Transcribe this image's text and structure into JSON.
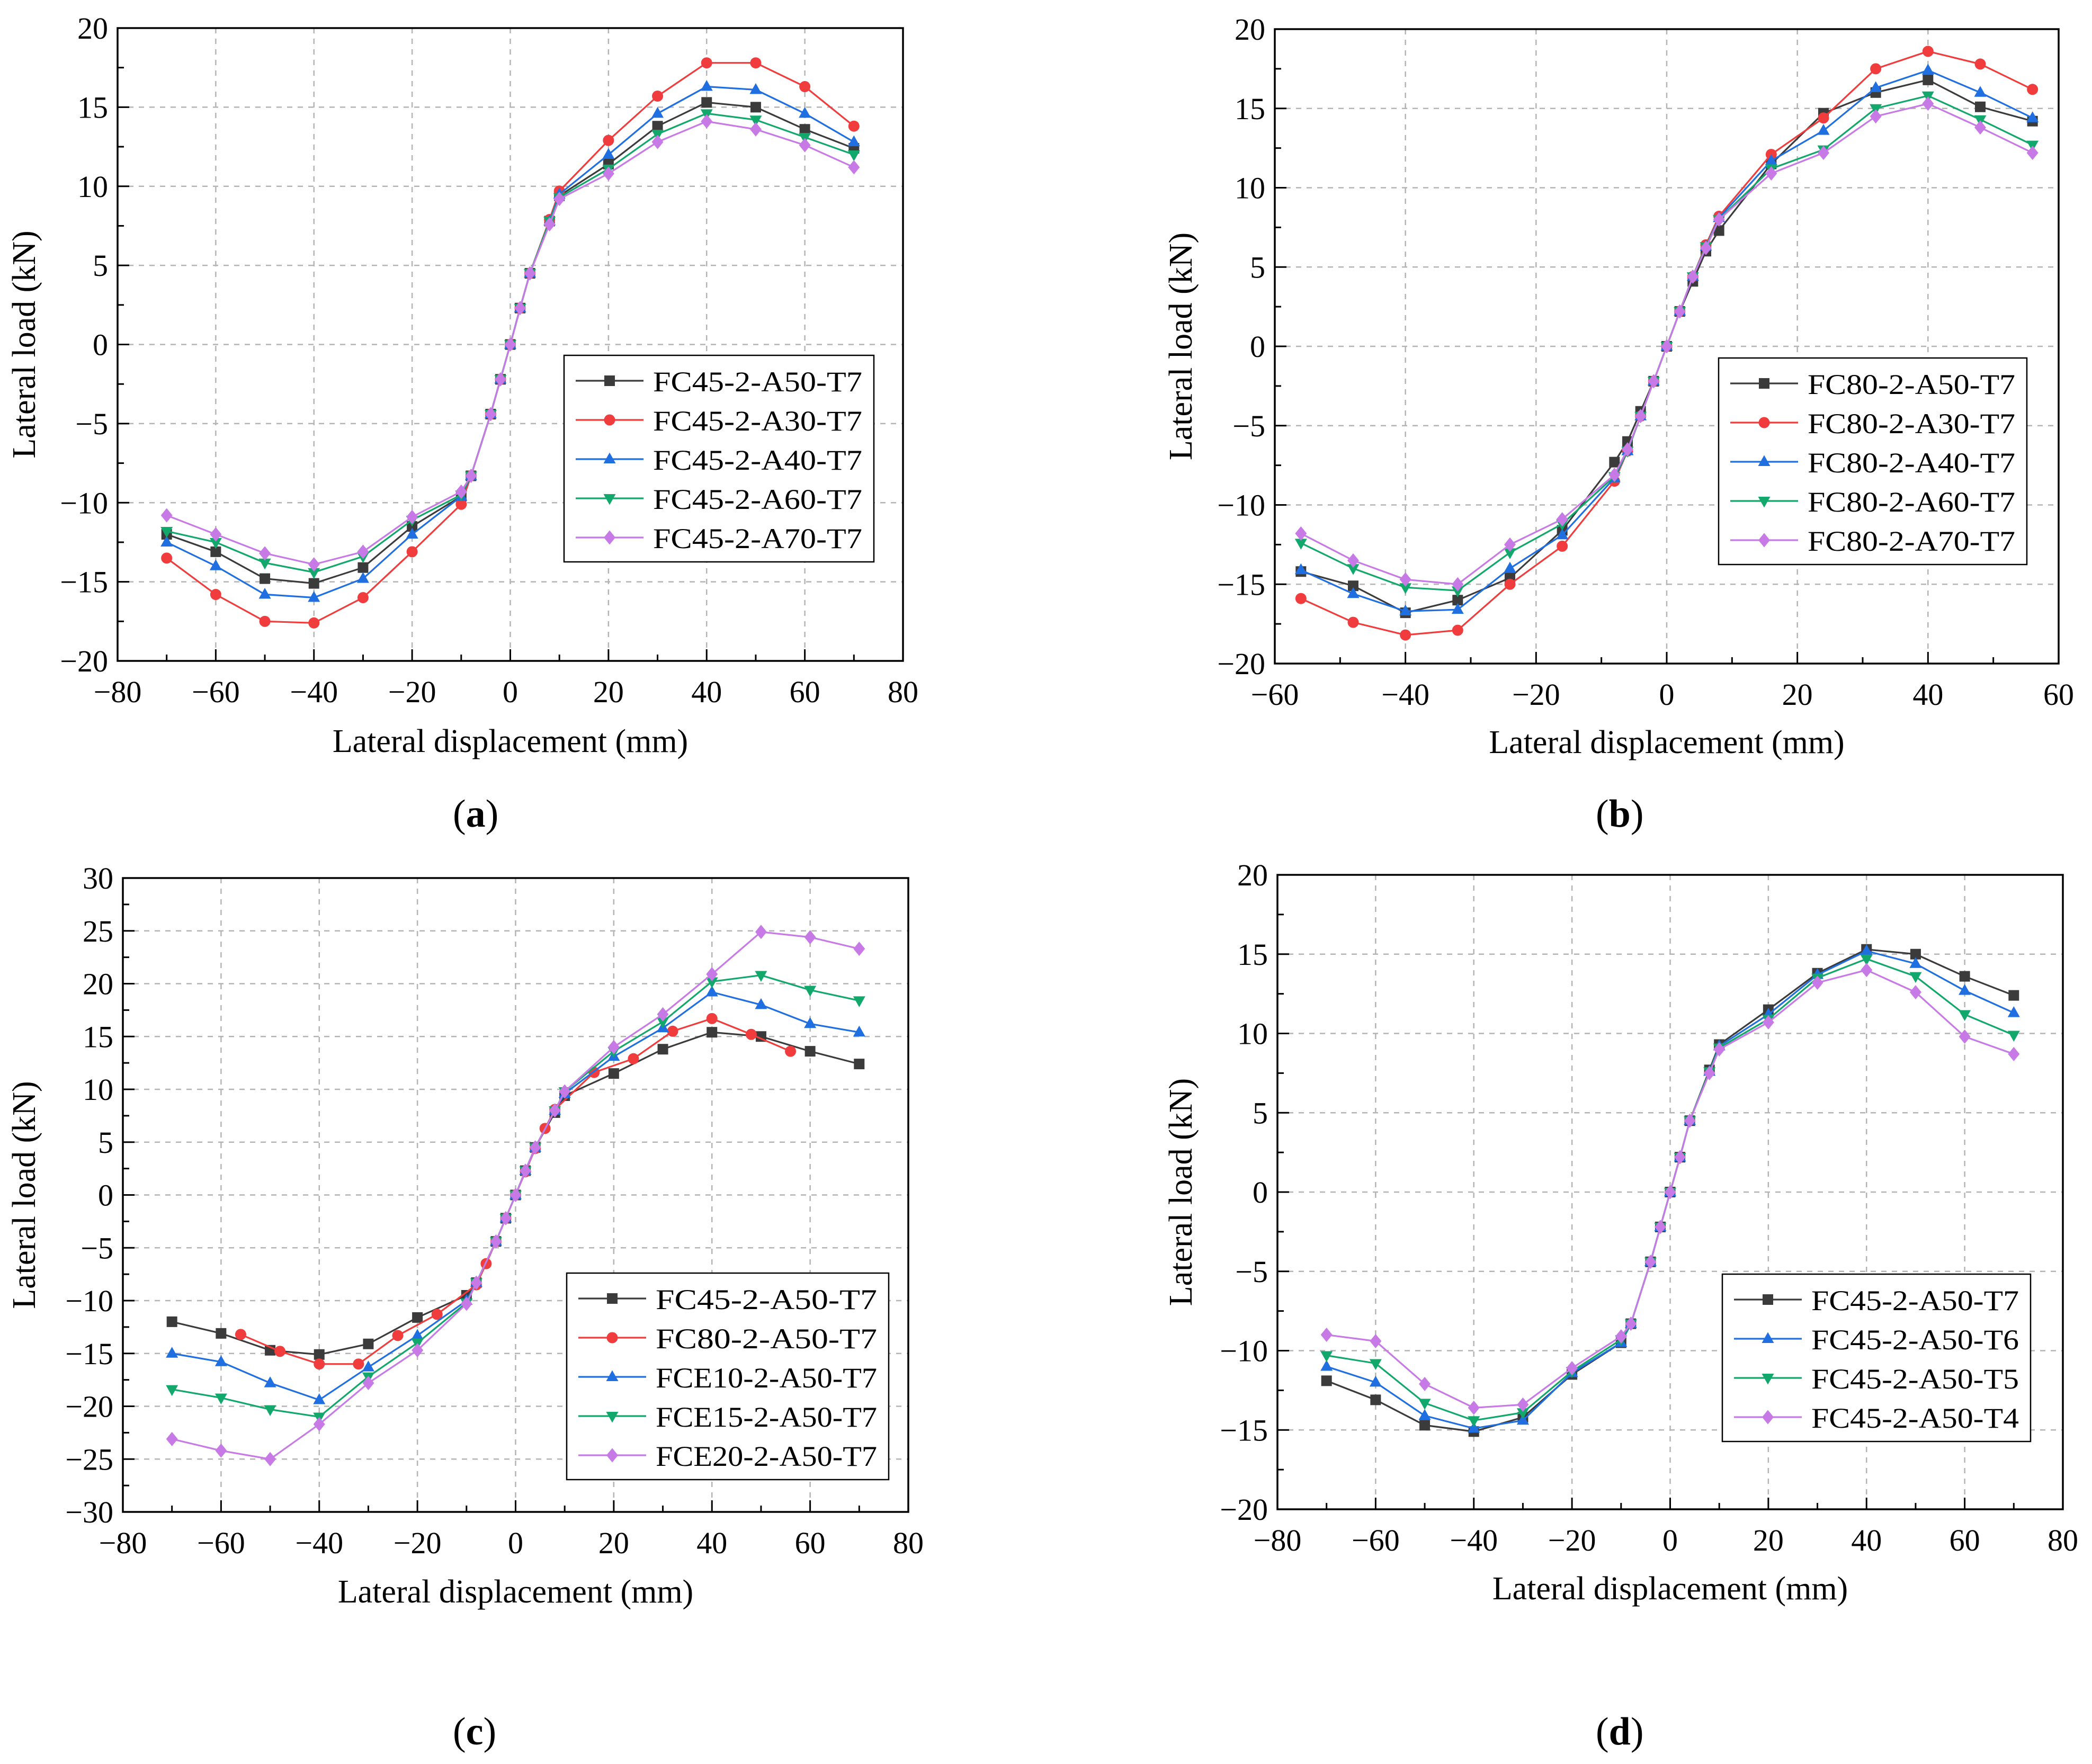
{
  "colors": {
    "black": "#3b3b3b",
    "red": "#f03c3c",
    "blue": "#1f6fe0",
    "green": "#13a86b",
    "purple": "#c77ae6",
    "grid": "#b4b4b4"
  },
  "chart_data": [
    {
      "type": "line",
      "panel": "(a)",
      "panel_letter": "a",
      "xlabel": "Lateral displacement (mm)",
      "ylabel": "Lateral load (kN)",
      "xlim": [
        -80,
        80
      ],
      "ylim": [
        -20,
        20
      ],
      "xticks": [
        -80,
        -60,
        -40,
        -20,
        0,
        20,
        40,
        60,
        80
      ],
      "yticks": [
        -20,
        -15,
        -10,
        -5,
        0,
        5,
        10,
        15,
        20
      ],
      "legend": "lower-right",
      "series": [
        {
          "name": "FC45-2-A50-T7",
          "color": "black",
          "marker": "square",
          "x": [
            -70,
            -60,
            -50,
            -40,
            -30,
            -20,
            -10,
            -8,
            -4,
            -2,
            0,
            2,
            4,
            8,
            10,
            20,
            30,
            40,
            50,
            60,
            70
          ],
          "y": [
            -12,
            -13.1,
            -14.8,
            -15.1,
            -14.1,
            -11.5,
            -9.6,
            -8.3,
            -4.4,
            -2.2,
            0,
            2.3,
            4.5,
            7.8,
            9.4,
            11.4,
            13.8,
            15.3,
            15,
            13.6,
            12.4
          ]
        },
        {
          "name": "FC45-2-A30-T7",
          "color": "red",
          "marker": "circle",
          "x": [
            -70,
            -60,
            -50,
            -40,
            -30,
            -20,
            -10,
            -8,
            -4,
            -2,
            0,
            2,
            4,
            8,
            10,
            20,
            30,
            40,
            50,
            60,
            70
          ],
          "y": [
            -13.5,
            -15.8,
            -17.5,
            -17.6,
            -16,
            -13.1,
            -10.1,
            -8.3,
            -4.4,
            -2.2,
            0,
            2.3,
            4.5,
            7.9,
            9.7,
            12.9,
            15.7,
            17.8,
            17.8,
            16.3,
            13.8
          ]
        },
        {
          "name": "FC45-2-A40-T7",
          "color": "blue",
          "marker": "triangle",
          "x": [
            -70,
            -60,
            -50,
            -40,
            -30,
            -20,
            -10,
            -8,
            -4,
            -2,
            0,
            2,
            4,
            8,
            10,
            20,
            30,
            40,
            50,
            60,
            70
          ],
          "y": [
            -12.5,
            -14,
            -15.8,
            -16,
            -14.8,
            -12,
            -9.6,
            -8.3,
            -4.4,
            -2.2,
            0,
            2.3,
            4.5,
            7.8,
            9.5,
            12,
            14.6,
            16.3,
            16.1,
            14.6,
            12.8
          ]
        },
        {
          "name": "FC45-2-A60-T7",
          "color": "green",
          "marker": "triangle-down",
          "x": [
            -70,
            -60,
            -50,
            -40,
            -30,
            -20,
            -10,
            -8,
            -4,
            -2,
            0,
            2,
            4,
            8,
            10,
            20,
            30,
            40,
            50,
            60,
            70
          ],
          "y": [
            -11.8,
            -12.5,
            -13.8,
            -14.4,
            -13.4,
            -11.1,
            -9.5,
            -8.3,
            -4.4,
            -2.2,
            0,
            2.3,
            4.5,
            7.8,
            9.3,
            11.1,
            13.3,
            14.6,
            14.2,
            13.1,
            12
          ]
        },
        {
          "name": "FC45-2-A70-T7",
          "color": "purple",
          "marker": "diamond",
          "x": [
            -70,
            -60,
            -50,
            -40,
            -30,
            -20,
            -10,
            -8,
            -4,
            -2,
            0,
            2,
            4,
            8,
            10,
            20,
            30,
            40,
            50,
            60,
            70
          ],
          "y": [
            -10.8,
            -12,
            -13.2,
            -13.9,
            -13.1,
            -10.9,
            -9.3,
            -8.3,
            -4.4,
            -2.2,
            0,
            2.3,
            4.5,
            7.6,
            9.2,
            10.8,
            12.8,
            14.1,
            13.6,
            12.6,
            11.2
          ]
        }
      ]
    },
    {
      "type": "line",
      "panel": "(b)",
      "panel_letter": "b",
      "xlabel": "Lateral displacement (mm)",
      "ylabel": "Lateral load (kN)",
      "xlim": [
        -60,
        60
      ],
      "ylim": [
        -20,
        20
      ],
      "xticks": [
        -60,
        -40,
        -20,
        0,
        20,
        40,
        60
      ],
      "yticks": [
        -20,
        -15,
        -10,
        -5,
        0,
        5,
        10,
        15,
        20
      ],
      "legend": "lower-right",
      "series": [
        {
          "name": "FC80-2-A50-T7",
          "color": "black",
          "marker": "square",
          "x": [
            -56,
            -48,
            -40,
            -32,
            -24,
            -16,
            -8,
            -6,
            -4,
            -2,
            0,
            2,
            4,
            6,
            8,
            16,
            24,
            32,
            40,
            48,
            56
          ],
          "y": [
            -14.2,
            -15.1,
            -16.8,
            -16,
            -14.6,
            -11.6,
            -7.3,
            -6,
            -4.1,
            -2.2,
            0,
            2.2,
            4.1,
            6,
            7.3,
            11.5,
            14.7,
            16,
            16.8,
            15.1,
            14.2
          ]
        },
        {
          "name": "FC80-2-A30-T7",
          "color": "red",
          "marker": "circle",
          "x": [
            -56,
            -48,
            -40,
            -32,
            -24,
            -16,
            -8,
            -6,
            -4,
            -2,
            0,
            2,
            4,
            6,
            8,
            16,
            24,
            32,
            40,
            48,
            56
          ],
          "y": [
            -15.9,
            -17.4,
            -18.2,
            -17.9,
            -15,
            -12.6,
            -8.5,
            -6.6,
            -4.4,
            -2.2,
            0,
            2.2,
            4.4,
            6.4,
            8.2,
            12.1,
            14.4,
            17.5,
            18.6,
            17.8,
            16.2
          ]
        },
        {
          "name": "FC80-2-A40-T7",
          "color": "blue",
          "marker": "triangle",
          "x": [
            -56,
            -48,
            -40,
            -32,
            -24,
            -16,
            -8,
            -6,
            -4,
            -2,
            0,
            2,
            4,
            6,
            8,
            16,
            24,
            32,
            40,
            48,
            56
          ],
          "y": [
            -14.1,
            -15.6,
            -16.7,
            -16.6,
            -14,
            -11.9,
            -8.3,
            -6.6,
            -4.4,
            -2.2,
            0,
            2.2,
            4.4,
            6.3,
            8.1,
            11.7,
            13.6,
            16.3,
            17.4,
            16,
            14.4
          ]
        },
        {
          "name": "FC80-2-A60-T7",
          "color": "green",
          "marker": "triangle-down",
          "x": [
            -56,
            -48,
            -40,
            -32,
            -24,
            -16,
            -8,
            -6,
            -4,
            -2,
            0,
            2,
            4,
            6,
            8,
            16,
            24,
            32,
            40,
            48,
            56
          ],
          "y": [
            -12.4,
            -14,
            -15.2,
            -15.4,
            -13,
            -11.2,
            -8.2,
            -6.6,
            -4.4,
            -2.2,
            0,
            2.2,
            4.4,
            6.3,
            8,
            11.2,
            12.4,
            15,
            15.8,
            14.3,
            12.7
          ]
        },
        {
          "name": "FC80-2-A70-T7",
          "color": "purple",
          "marker": "diamond",
          "x": [
            -56,
            -48,
            -40,
            -32,
            -24,
            -16,
            -8,
            -6,
            -4,
            -2,
            0,
            2,
            4,
            6,
            8,
            16,
            24,
            32,
            40,
            48,
            56
          ],
          "y": [
            -11.8,
            -13.5,
            -14.7,
            -15,
            -12.5,
            -10.9,
            -8.1,
            -6.5,
            -4.4,
            -2.2,
            0,
            2.2,
            4.4,
            6.2,
            8,
            10.9,
            12.2,
            14.5,
            15.3,
            13.8,
            12.2
          ]
        }
      ]
    },
    {
      "type": "line",
      "panel": "(c)",
      "panel_letter": "c",
      "xlabel": "Lateral displacement (mm)",
      "ylabel": "Lateral load (kN)",
      "xlim": [
        -80,
        80
      ],
      "ylim": [
        -30,
        30
      ],
      "xticks": [
        -80,
        -60,
        -40,
        -20,
        0,
        20,
        40,
        60,
        80
      ],
      "yticks": [
        -30,
        -25,
        -20,
        -15,
        -10,
        -5,
        0,
        5,
        10,
        15,
        20,
        25,
        30
      ],
      "legend": "lower-right",
      "series": [
        {
          "name": "FC45-2-A50-T7",
          "color": "black",
          "marker": "square",
          "x": [
            -70,
            -60,
            -50,
            -40,
            -30,
            -20,
            -10,
            -8,
            -4,
            -2,
            0,
            2,
            4,
            8,
            10,
            20,
            30,
            40,
            50,
            60,
            70
          ],
          "y": [
            -12,
            -13.1,
            -14.7,
            -15.1,
            -14.1,
            -11.6,
            -9.5,
            -8.3,
            -4.4,
            -2.2,
            0,
            2.3,
            4.5,
            7.8,
            9.4,
            11.5,
            13.8,
            15.4,
            15,
            13.6,
            12.4
          ]
        },
        {
          "name": "FC80-2-A50-T7",
          "color": "red",
          "marker": "circle",
          "x": [
            -56,
            -48,
            -40,
            -32,
            -24,
            -16,
            -8,
            -6,
            -4,
            -2,
            0,
            2,
            4,
            6,
            8,
            16,
            24,
            32,
            40,
            48,
            56
          ],
          "y": [
            -13.2,
            -14.8,
            -16,
            -16,
            -13.3,
            -11.3,
            -8.5,
            -6.5,
            -4.4,
            -2.2,
            0,
            2.2,
            4.4,
            6.3,
            8.1,
            11.6,
            12.9,
            15.5,
            16.7,
            15.2,
            13.6
          ]
        },
        {
          "name": "FCE10-2-A50-T7",
          "color": "blue",
          "marker": "triangle",
          "x": [
            -70,
            -60,
            -50,
            -40,
            -30,
            -20,
            -10,
            -8,
            -4,
            -2,
            0,
            2,
            4,
            8,
            10,
            20,
            30,
            40,
            50,
            60,
            70
          ],
          "y": [
            -15,
            -15.8,
            -17.8,
            -19.4,
            -16.3,
            -13.3,
            -10,
            -8.3,
            -4.4,
            -2.2,
            0,
            2.3,
            4.5,
            8,
            9.6,
            13.1,
            15.8,
            19.2,
            18,
            16.2,
            15.4
          ]
        },
        {
          "name": "FCE15-2-A50-T7",
          "color": "green",
          "marker": "triangle-down",
          "x": [
            -70,
            -60,
            -50,
            -40,
            -30,
            -20,
            -10,
            -8,
            -4,
            -2,
            0,
            2,
            4,
            8,
            10,
            20,
            30,
            40,
            50,
            60,
            70
          ],
          "y": [
            -18.4,
            -19.2,
            -20.3,
            -21,
            -17.2,
            -14,
            -10.2,
            -8.3,
            -4.4,
            -2.2,
            0,
            2.3,
            4.5,
            8,
            9.8,
            13.6,
            16.4,
            20.2,
            20.8,
            19.4,
            18.4
          ]
        },
        {
          "name": "FCE20-2-A50-T7",
          "color": "purple",
          "marker": "diamond",
          "x": [
            -70,
            -60,
            -50,
            -40,
            -30,
            -20,
            -10,
            -8,
            -4,
            -2,
            0,
            2,
            4,
            8,
            10,
            20,
            30,
            40,
            50,
            60,
            70
          ],
          "y": [
            -23.1,
            -24.2,
            -25,
            -21.7,
            -17.8,
            -14.7,
            -10.3,
            -8.3,
            -4.4,
            -2.2,
            0,
            2.3,
            4.5,
            8,
            9.8,
            14,
            17.1,
            20.9,
            24.9,
            24.4,
            23.3
          ]
        }
      ]
    },
    {
      "type": "line",
      "panel": "(d)",
      "panel_letter": "d",
      "xlabel": "Lateral displacement (mm)",
      "ylabel": "Lateral load (kN)",
      "xlim": [
        -80,
        80
      ],
      "ylim": [
        -20,
        20
      ],
      "xticks": [
        -80,
        -60,
        -40,
        -20,
        0,
        20,
        40,
        60,
        80
      ],
      "yticks": [
        -20,
        -15,
        -10,
        -5,
        0,
        5,
        10,
        15,
        20
      ],
      "legend": "lower-right",
      "series": [
        {
          "name": "FC45-2-A50-T7",
          "color": "black",
          "marker": "square",
          "x": [
            -70,
            -60,
            -50,
            -40,
            -30,
            -20,
            -10,
            -8,
            -4,
            -2,
            0,
            2,
            4,
            8,
            10,
            20,
            30,
            40,
            50,
            60,
            70
          ],
          "y": [
            -11.9,
            -13.1,
            -14.7,
            -15.1,
            -14.2,
            -11.5,
            -9.5,
            -8.3,
            -4.4,
            -2.2,
            0,
            2.2,
            4.5,
            7.7,
            9.3,
            11.5,
            13.8,
            15.3,
            15,
            13.6,
            12.4
          ]
        },
        {
          "name": "FC45-2-A50-T6",
          "color": "blue",
          "marker": "triangle",
          "x": [
            -70,
            -60,
            -50,
            -40,
            -30,
            -20,
            -10,
            -8,
            -4,
            -2,
            0,
            2,
            4,
            8,
            10,
            20,
            30,
            40,
            50,
            60,
            70
          ],
          "y": [
            -11,
            -12,
            -14.1,
            -14.9,
            -14.4,
            -11.4,
            -9.5,
            -8.3,
            -4.4,
            -2.2,
            0,
            2.2,
            4.5,
            7.6,
            9.2,
            11.2,
            13.7,
            15.2,
            14.4,
            12.7,
            11.3
          ]
        },
        {
          "name": "FC45-2-A50-T5",
          "color": "green",
          "marker": "triangle-down",
          "x": [
            -70,
            -60,
            -50,
            -40,
            -30,
            -20,
            -10,
            -8,
            -4,
            -2,
            0,
            2,
            4,
            8,
            10,
            20,
            30,
            40,
            50,
            60,
            70
          ],
          "y": [
            -10.3,
            -10.8,
            -13.3,
            -14.4,
            -13.9,
            -11.3,
            -9.3,
            -8.3,
            -4.4,
            -2.2,
            0,
            2.2,
            4.5,
            7.6,
            9.1,
            10.9,
            13.5,
            14.7,
            13.6,
            11.2,
            9.9
          ]
        },
        {
          "name": "FC45-2-A50-T4",
          "color": "purple",
          "marker": "diamond",
          "x": [
            -70,
            -60,
            -50,
            -40,
            -30,
            -20,
            -10,
            -8,
            -4,
            -2,
            0,
            2,
            4,
            8,
            10,
            20,
            30,
            40,
            50,
            60,
            70
          ],
          "y": [
            -9,
            -9.4,
            -12.1,
            -13.6,
            -13.4,
            -11.1,
            -9.1,
            -8.3,
            -4.4,
            -2.2,
            0,
            2.2,
            4.5,
            7.5,
            9,
            10.7,
            13.2,
            14,
            12.6,
            9.8,
            8.7
          ]
        }
      ]
    }
  ]
}
